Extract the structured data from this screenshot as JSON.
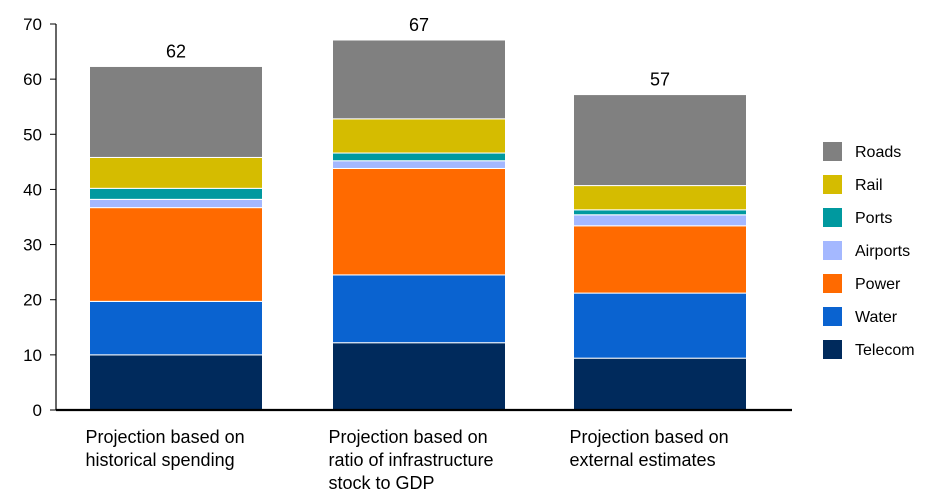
{
  "chart_data": {
    "type": "bar",
    "stacked": true,
    "title": "",
    "xlabel": "",
    "ylabel": "",
    "ylim": [
      0,
      70
    ],
    "yticks": [
      0,
      10,
      20,
      30,
      40,
      50,
      60,
      70
    ],
    "grid": false,
    "legend_position": "right",
    "categories": [
      [
        "Projection based on",
        "historical spending"
      ],
      [
        "Projection based on",
        "ratio of infrastructure",
        "stock to GDP"
      ],
      [
        "Projection based on",
        "external estimates"
      ]
    ],
    "totals": [
      62,
      67,
      57
    ],
    "series": [
      {
        "name": "Telecom",
        "color": "#002a5c",
        "values": [
          10.0,
          12.2,
          9.4
        ]
      },
      {
        "name": "Water",
        "color": "#0a63d0",
        "values": [
          9.7,
          12.3,
          11.8
        ]
      },
      {
        "name": "Power",
        "color": "#ff6a00",
        "values": [
          17.0,
          19.3,
          12.2
        ]
      },
      {
        "name": "Airports",
        "color": "#a4b8ff",
        "values": [
          1.5,
          1.4,
          2.0
        ]
      },
      {
        "name": "Ports",
        "color": "#00999f",
        "values": [
          2.0,
          1.4,
          0.9
        ]
      },
      {
        "name": "Rail",
        "color": "#d5bc00",
        "values": [
          5.6,
          6.2,
          4.4
        ]
      },
      {
        "name": "Roads",
        "color": "#808080",
        "values": [
          16.5,
          14.3,
          16.5
        ]
      }
    ]
  }
}
